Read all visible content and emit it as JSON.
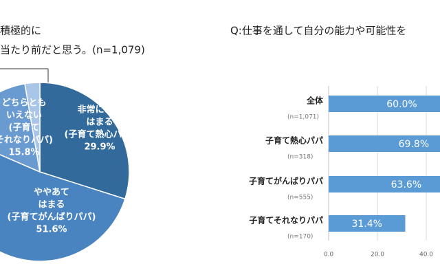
{
  "chart_data": [
    {
      "type": "pie",
      "title": [
        "積極的に",
        "当たり前だと思う。(n=1,079)"
      ],
      "categories": [
        [
          "非常にあて",
          "はまる",
          "(子育て熱心パパ)"
        ],
        [
          "ややあて",
          "はまる",
          "(子育てがんばりパパ)"
        ],
        [
          "どちらとも",
          "いえない",
          "(子育て",
          "それなりパパ)"
        ],
        null
      ],
      "values": [
        29.9,
        51.6,
        15.8,
        2.7
      ],
      "value_labels": [
        "29.9%",
        "51.6%",
        "15.8%",
        null
      ],
      "colors": [
        "#336a9c",
        "#4a84c0",
        "#6a9bd0",
        "#a9c6e8"
      ]
    },
    {
      "type": "barh",
      "title": "Q:仕事を通して自分の能力や可能性を",
      "categories": [
        "全体",
        "子育て熱心パパ",
        "子育てがんばりパパ",
        "子育てそれなりパパ"
      ],
      "n_labels": [
        "(n=1,071)",
        "(n=318)",
        "(n=555)",
        "(n=170)"
      ],
      "values": [
        60.0,
        69.8,
        63.6,
        31.4
      ],
      "value_labels": [
        "60.0%",
        "69.8%",
        "63.6%",
        "31.4%"
      ],
      "color": "#5b9bd5",
      "xlim": [
        0,
        100
      ],
      "xticks": [
        {
          "value": 0,
          "label": "0.0"
        },
        {
          "value": 20,
          "label": "20.0"
        },
        {
          "value": 40,
          "label": "40.0"
        }
      ],
      "grid": true
    }
  ]
}
